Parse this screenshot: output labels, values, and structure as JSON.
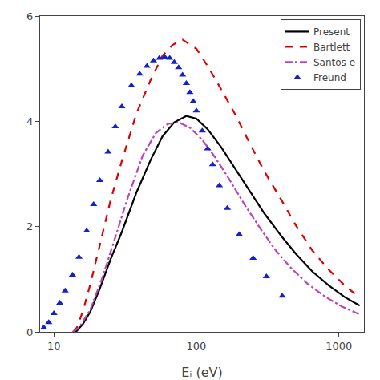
{
  "chart_data": {
    "type": "line",
    "x_label": "Eᵢ (eV)",
    "log": "x",
    "grid": false,
    "legend": "upper right",
    "xlim": [
      8,
      1500
    ],
    "xticks": [
      10,
      100,
      1000
    ],
    "ylim": [
      0,
      6
    ],
    "yticks": [
      0,
      2,
      4,
      6
    ],
    "series": [
      {
        "name": "Present",
        "type": "line",
        "color": "#000000",
        "line_style": "solid",
        "x": [
          13.6,
          14.5,
          16,
          18,
          21,
          25,
          30,
          38,
          48,
          58,
          70,
          85,
          100,
          120,
          150,
          190,
          240,
          300,
          400,
          500,
          650,
          850,
          1100,
          1400
        ],
        "values": [
          0.0,
          0.02,
          0.15,
          0.38,
          0.82,
          1.38,
          1.9,
          2.65,
          3.28,
          3.72,
          3.98,
          4.1,
          4.05,
          3.85,
          3.5,
          3.08,
          2.65,
          2.25,
          1.8,
          1.48,
          1.15,
          0.88,
          0.66,
          0.5
        ]
      },
      {
        "name": "Bartlett",
        "type": "line",
        "color": "#dd0000",
        "line_style": "dashed",
        "x": [
          13.6,
          14.5,
          16,
          18,
          21,
          25,
          30,
          38,
          48,
          58,
          68,
          80,
          100,
          120,
          150,
          190,
          240,
          300,
          400,
          500,
          650,
          850,
          1100,
          1400
        ],
        "values": [
          0.0,
          0.08,
          0.4,
          0.9,
          1.65,
          2.5,
          3.25,
          4.15,
          4.8,
          5.25,
          5.45,
          5.55,
          5.38,
          5.05,
          4.6,
          4.1,
          3.55,
          3.05,
          2.48,
          2.02,
          1.55,
          1.18,
          0.88,
          0.65
        ]
      },
      {
        "name": "Santos e",
        "type": "line",
        "color": "#bb44bb",
        "line_style": "dashdot",
        "x": [
          13.6,
          15,
          18,
          22,
          27,
          33,
          42,
          52,
          63,
          75,
          90,
          110,
          135,
          170,
          220,
          280,
          360,
          460,
          600,
          800,
          1050,
          1380
        ],
        "values": [
          0.0,
          0.08,
          0.42,
          1.05,
          1.8,
          2.55,
          3.35,
          3.78,
          3.95,
          3.98,
          3.88,
          3.65,
          3.32,
          2.9,
          2.4,
          1.97,
          1.55,
          1.22,
          0.92,
          0.67,
          0.48,
          0.34
        ]
      },
      {
        "name": "Freund",
        "type": "scatter",
        "color": "#1122cc",
        "marker": "triangle-up",
        "x": [
          8.5,
          9.2,
          10.0,
          11.0,
          12.0,
          13.5,
          15,
          17,
          19,
          21,
          24,
          27,
          30,
          35,
          40,
          45,
          50,
          55,
          60,
          65,
          70,
          75,
          80,
          85,
          90,
          95,
          100,
          110,
          120,
          130,
          145,
          165,
          200,
          250,
          310,
          400
        ],
        "values": [
          0.08,
          0.18,
          0.35,
          0.55,
          0.78,
          1.08,
          1.42,
          1.92,
          2.42,
          2.88,
          3.42,
          3.9,
          4.28,
          4.68,
          4.9,
          5.05,
          5.15,
          5.2,
          5.22,
          5.2,
          5.12,
          5.02,
          4.88,
          4.72,
          4.55,
          4.38,
          4.2,
          3.82,
          3.48,
          3.18,
          2.78,
          2.35,
          1.85,
          1.4,
          1.05,
          0.68
        ]
      }
    ]
  }
}
